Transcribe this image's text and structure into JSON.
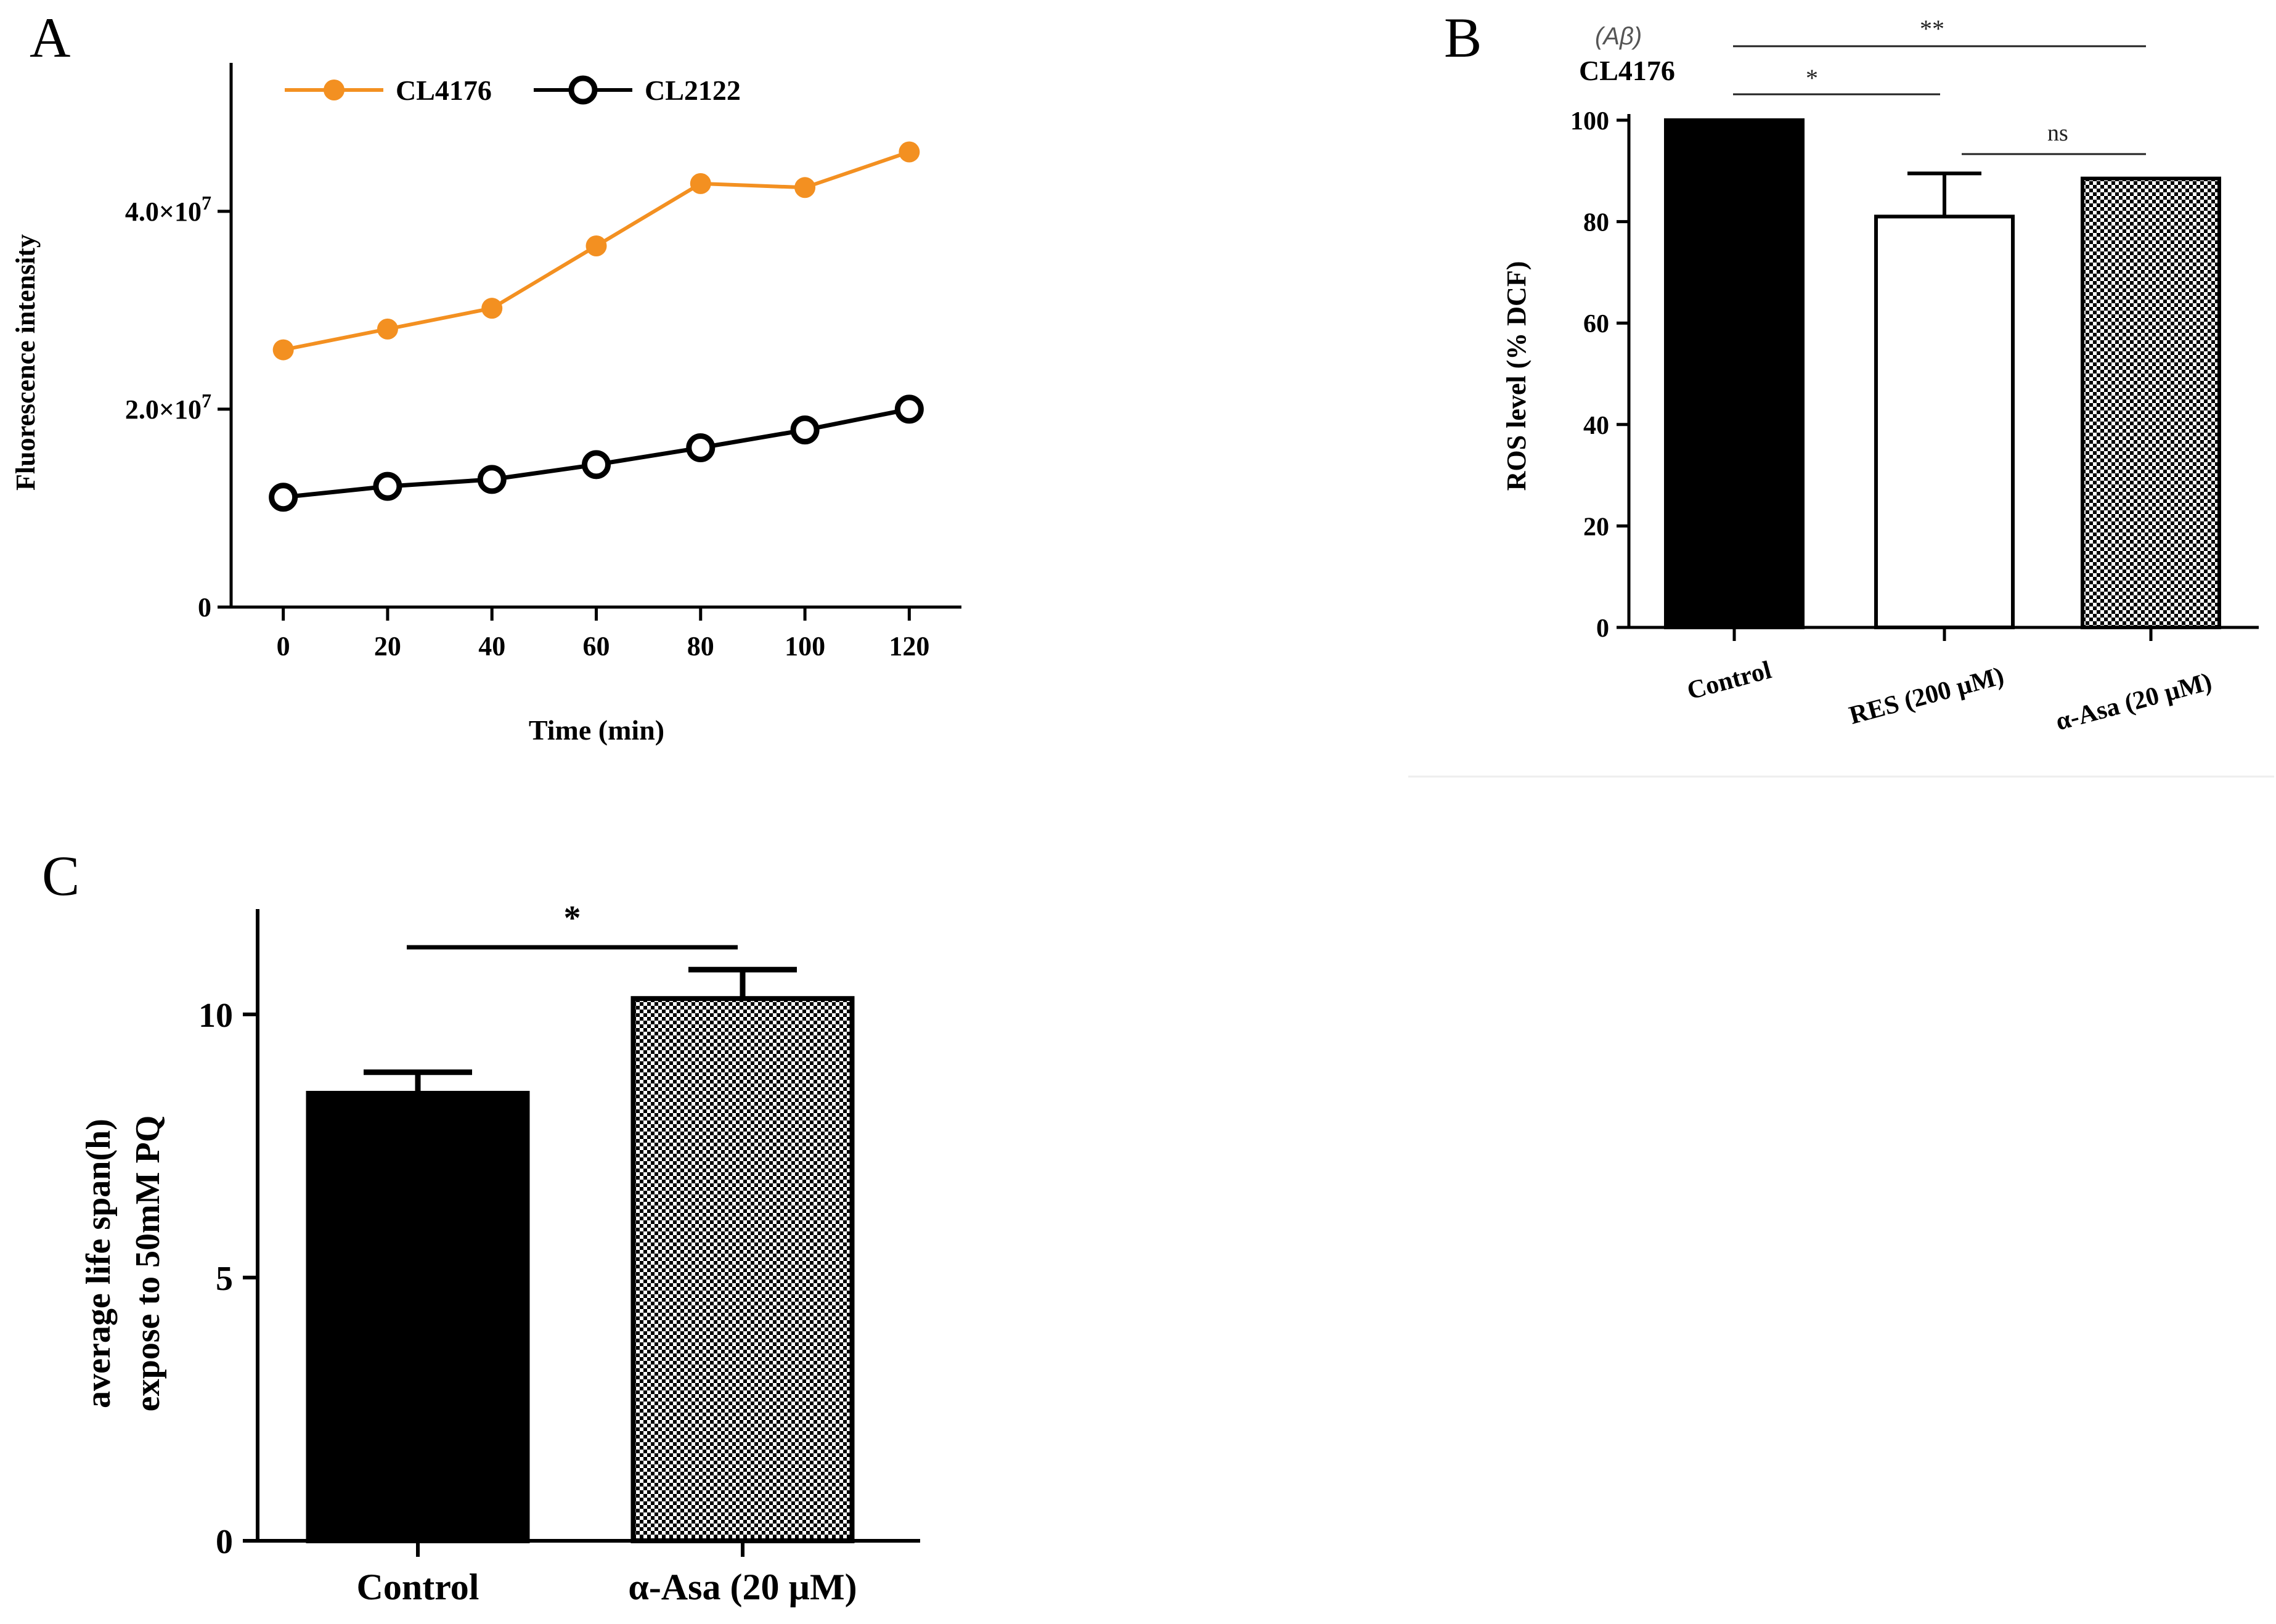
{
  "colors": {
    "cl4176": "#f39021",
    "cl2122": "#000000",
    "axis": "#000000",
    "bar_black": "#000000",
    "bar_white": "#ffffff"
  },
  "chart_data": [
    {
      "panel": "A",
      "type": "line",
      "xlabel": "Time (min)",
      "ylabel": "Fluorescence intensity",
      "x": [
        0,
        20,
        40,
        60,
        80,
        100,
        120
      ],
      "x_ticks": [
        "0",
        "20",
        "40",
        "60",
        "80",
        "100",
        "120"
      ],
      "y_ticks": [
        {
          "value": 0,
          "base": "0",
          "exp": ""
        },
        {
          "value": 20000000,
          "base": "2.0×10",
          "exp": "7"
        },
        {
          "value": 40000000,
          "base": "4.0×10",
          "exp": "7"
        }
      ],
      "xlim": [
        -10,
        130
      ],
      "ylim": [
        0,
        55000000
      ],
      "legend_position": "top",
      "series": [
        {
          "name": "CL4176",
          "marker": "filled-circle",
          "values": [
            26000000,
            28100000,
            30200000,
            36500000,
            42800000,
            42400000,
            46000000
          ]
        },
        {
          "name": "CL2122",
          "marker": "open-circle",
          "values": [
            11100000,
            12200000,
            12900000,
            14400000,
            16100000,
            17900000,
            20000000
          ]
        }
      ]
    },
    {
      "panel": "B",
      "type": "bar",
      "ylabel": "ROS level (% DCF)",
      "corner_note": "(Aβ)",
      "corner_title": "CL4176",
      "categories": [
        "Control",
        "RES (200 µM)",
        "α-Asa (20 µM)"
      ],
      "values": [
        100,
        81,
        88.5
      ],
      "errors": [
        0,
        8.5,
        0.5
      ],
      "fills": [
        "black",
        "white",
        "checker"
      ],
      "y_ticks": [
        0,
        20,
        40,
        60,
        80,
        100
      ],
      "ylim": [
        0,
        100
      ],
      "significance": [
        {
          "from": 0,
          "to": 1,
          "label": "*"
        },
        {
          "from": 0,
          "to": 2,
          "label": "**"
        },
        {
          "from": 1,
          "to": 2,
          "label": "ns"
        }
      ]
    },
    {
      "panel": "C",
      "type": "bar",
      "ylabel_line1": "average life span(h)",
      "ylabel_line2": "expose to 50mM  PQ",
      "categories": [
        "Control",
        "α-Asa (20 µM)"
      ],
      "values": [
        8.5,
        10.3
      ],
      "errors": [
        0.4,
        0.55
      ],
      "fills": [
        "black",
        "checker"
      ],
      "y_ticks": [
        0,
        5,
        10
      ],
      "ylim": [
        0,
        12
      ],
      "significance": [
        {
          "from": 0,
          "to": 1,
          "label": "*"
        }
      ]
    }
  ]
}
